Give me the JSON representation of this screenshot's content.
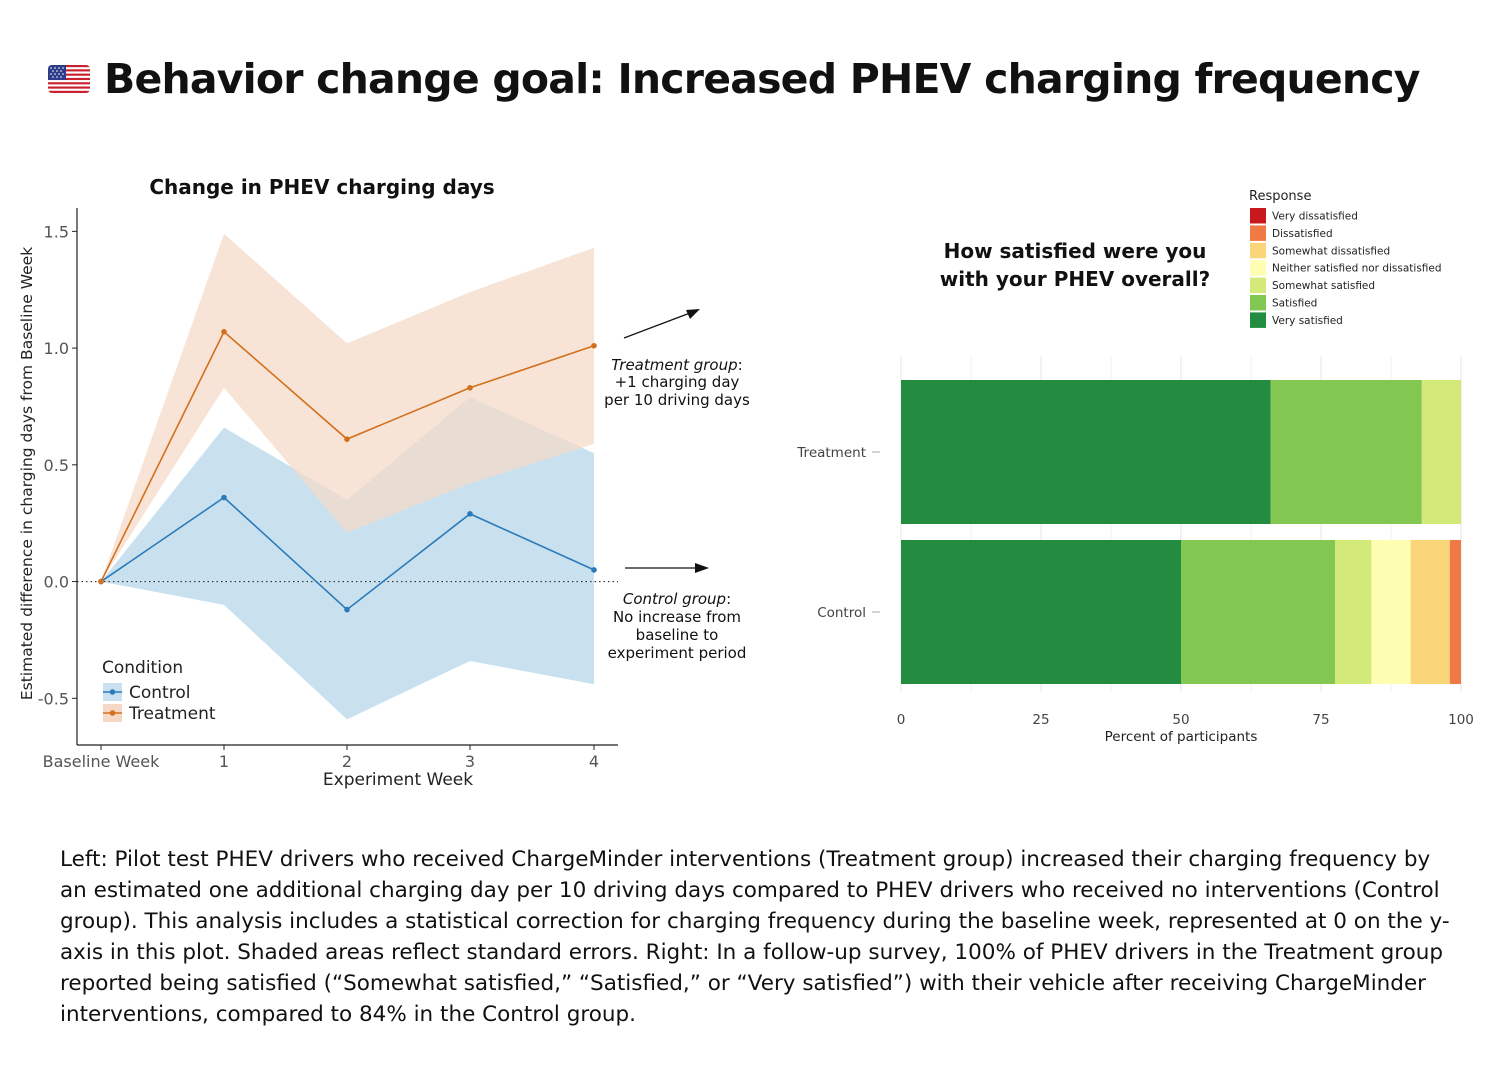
{
  "page": {
    "title": "Behavior change goal: Increased PHEV charging frequency",
    "flag_icon": "us-flag-icon",
    "caption": "Left: Pilot test PHEV drivers who received ChargeMinder interventions (Treatment group) increased their charging frequency by an estimated one additional charging day per 10 driving days compared to PHEV drivers who received no interventions (Control group). This analysis includes a statistical correction for charging frequency during the baseline week, represented at 0 on the y-axis in this plot. Shaded areas reflect standard errors. Right: In a follow-up survey, 100% of PHEV drivers in the Treatment group reported being satisfied (“Somewhat satisfied,” “Satisfied,” or “Very satisfied”) with their vehicle after receiving ChargeMinder interventions, compared to 84% in the Control group."
  },
  "chart_data": [
    {
      "type": "line",
      "title": "Change in PHEV charging days",
      "xlabel": "Experiment Week",
      "ylabel": "Estimated difference in charging days from Baseline Week",
      "categories": [
        "Baseline Week",
        "1",
        "2",
        "3",
        "4"
      ],
      "yticks": [
        "-0.5",
        "0.0",
        "0.5",
        "1.0",
        "1.5"
      ],
      "ylim": [
        -0.7,
        1.6
      ],
      "reference_line": 0,
      "grid": false,
      "legend": {
        "title": "Condition",
        "placement": "bottom-left"
      },
      "series": [
        {
          "name": "Control",
          "color": "#2b7bba",
          "band_color": "#c9e1ef",
          "values": [
            0,
            0.36,
            -0.12,
            0.29,
            0.05
          ],
          "lower": [
            0,
            -0.1,
            -0.59,
            -0.34,
            -0.44
          ],
          "upper": [
            0,
            0.66,
            0.35,
            0.79,
            0.55
          ]
        },
        {
          "name": "Treatment",
          "color": "#d3701c",
          "band_color": "#f5d9c6",
          "values": [
            0,
            1.07,
            0.61,
            0.83,
            1.01
          ],
          "lower": [
            0,
            0.83,
            0.21,
            0.42,
            0.59
          ],
          "upper": [
            0,
            1.49,
            1.02,
            1.24,
            1.43
          ]
        }
      ],
      "annotations": [
        {
          "label_italic": "Treatment group",
          "label_rest": ":",
          "lines": [
            "+1 charging day",
            "per 10 driving days"
          ]
        },
        {
          "label_italic": "Control group",
          "label_rest": ":",
          "lines": [
            "No increase from",
            "baseline to",
            "experiment period"
          ]
        }
      ]
    },
    {
      "type": "bar",
      "orientation": "horizontal",
      "stacked": true,
      "title_lines": [
        "How satisfied were you",
        "with your PHEV overall?"
      ],
      "xlabel": "Percent of participants",
      "xticks": [
        0,
        25,
        50,
        75,
        100
      ],
      "xlim": [
        0,
        100
      ],
      "grid": true,
      "legend": {
        "title": "Response",
        "placement": "top-right"
      },
      "categories": [
        "Treatment",
        "Control"
      ],
      "responses": [
        {
          "name": "Very dissatisfied",
          "color": "#c8181e"
        },
        {
          "name": "Dissatisfied",
          "color": "#f07a45"
        },
        {
          "name": "Somewhat dissatisfied",
          "color": "#fbd57a"
        },
        {
          "name": "Neither satisfied nor dissatisfied",
          "color": "#fefeb3"
        },
        {
          "name": "Somewhat satisfied",
          "color": "#d3ea7a"
        },
        {
          "name": "Satisfied",
          "color": "#82c752"
        },
        {
          "name": "Very satisfied",
          "color": "#238c40"
        }
      ],
      "stack_order": [
        "Very satisfied",
        "Satisfied",
        "Somewhat satisfied",
        "Neither satisfied nor dissatisfied",
        "Somewhat dissatisfied",
        "Dissatisfied",
        "Very dissatisfied"
      ],
      "values": {
        "Treatment": {
          "Very satisfied": 66,
          "Satisfied": 27,
          "Somewhat satisfied": 7,
          "Neither satisfied nor dissatisfied": 0,
          "Somewhat dissatisfied": 0,
          "Dissatisfied": 0,
          "Very dissatisfied": 0
        },
        "Control": {
          "Very satisfied": 50,
          "Satisfied": 27.5,
          "Somewhat satisfied": 6.5,
          "Neither satisfied nor dissatisfied": 7,
          "Somewhat dissatisfied": 7,
          "Dissatisfied": 2,
          "Very dissatisfied": 0
        }
      }
    }
  ]
}
